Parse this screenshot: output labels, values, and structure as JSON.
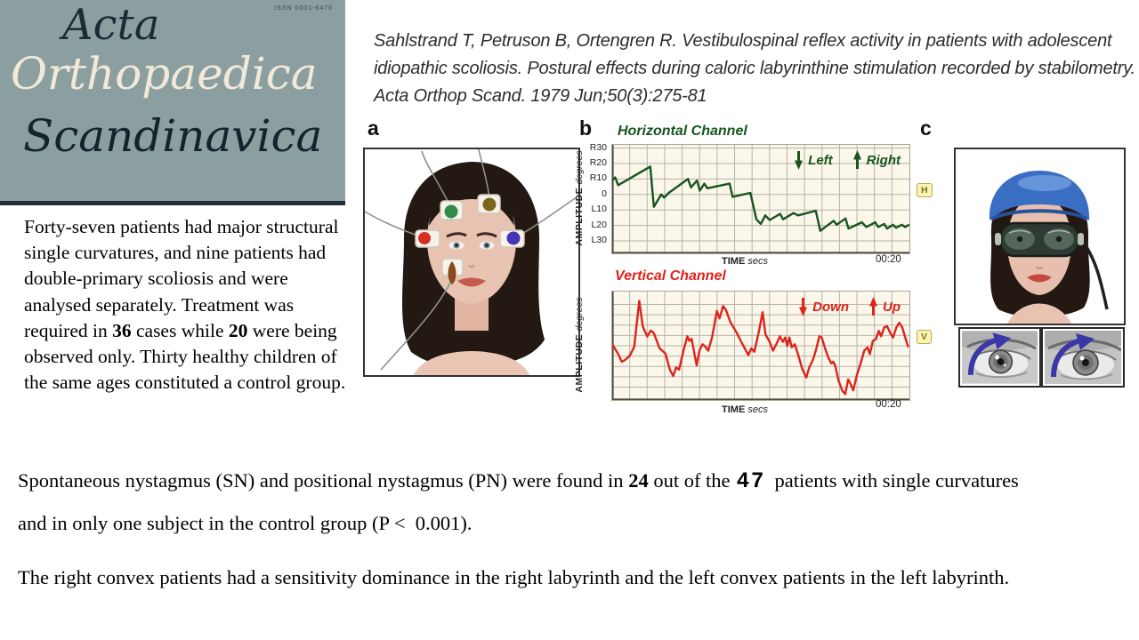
{
  "journal": {
    "issn": "ISSN 0001-6470",
    "title_lines": [
      "Acta",
      "Orthopaedica",
      "Scandinavica"
    ]
  },
  "citation": "Sahlstrand T, Petruson B, Ortengren R. Vestibulospinal reflex activity in patients with adolescent idiopathic scoliosis. Postural effects during caloric labyrinthine stimulation recorded by stabilometry. Acta Orthop Scand. 1979 Jun;50(3):275-81",
  "left_paragraph": [
    {
      "t": "Forty-seven patients had major structural single curvatures, and nine patients had double-primary scoliosis and were analysed separately. Treatment was required in "
    },
    {
      "t": "36",
      "b": true
    },
    {
      "t": " cases while "
    },
    {
      "t": "20",
      "b": true
    },
    {
      "t": " were being observed only. Thirty healthy children of the same ages constituted a control group."
    }
  ],
  "figures": {
    "a": {
      "label": "a"
    },
    "b": {
      "label": "b"
    },
    "c": {
      "label": "c"
    }
  },
  "findings": {
    "p1_line1": [
      {
        "t": "Spontaneous nystagmus (SN) and positional nystagmus (PN) were found in "
      },
      {
        "t": "24",
        "b": true
      },
      {
        "t": " out of the "
      },
      {
        "t": "47",
        "b": true,
        "big": true
      },
      {
        "t": " patients with single curvatures"
      }
    ],
    "p1_line2": [
      {
        "t": "and in only one subject in the control group (P <  0.001)."
      }
    ],
    "p2": [
      {
        "t": "The right convex patients had a sensitivity dominance in the right labyrinth and the left convex patients in the left labyrinth."
      }
    ]
  },
  "chart_data": [
    {
      "type": "line",
      "title": "Horizontal Channel",
      "color": "#17541E",
      "ylabel": "AMPLITUDE",
      "ylabel_unit": "degrees",
      "xlabel": "TIME",
      "xlabel_unit": "secs",
      "end_time": "00:20",
      "badge": "H",
      "yticks": [
        "R30",
        "R20",
        "R10",
        "0",
        "L10",
        "L20",
        "L30"
      ],
      "ytick_values": [
        30,
        20,
        10,
        0,
        -10,
        -20,
        -30
      ],
      "ylim": [
        -38,
        32
      ],
      "grid_cols": 17,
      "gridlines_y": [
        30,
        20,
        10,
        0,
        -10,
        -20,
        -30
      ],
      "legend": [
        {
          "direction": "down",
          "label": "Left"
        },
        {
          "direction": "up",
          "label": "Right"
        }
      ],
      "points": [
        [
          0,
          9
        ],
        [
          1,
          11
        ],
        [
          2,
          6
        ],
        [
          12.8,
          18
        ],
        [
          14,
          -8
        ],
        [
          16.5,
          0
        ],
        [
          17.5,
          -2
        ],
        [
          19,
          1
        ],
        [
          25.5,
          10
        ],
        [
          26.5,
          4.5
        ],
        [
          28.5,
          9
        ],
        [
          29.5,
          2.5
        ],
        [
          31,
          7
        ],
        [
          32,
          4
        ],
        [
          39.5,
          7
        ],
        [
          40.5,
          -1.5
        ],
        [
          46.5,
          1
        ],
        [
          48.5,
          -16
        ],
        [
          50,
          -19
        ],
        [
          51.5,
          -13.5
        ],
        [
          53,
          -16.5
        ],
        [
          56.5,
          -12.5
        ],
        [
          57.5,
          -16
        ],
        [
          61,
          -12
        ],
        [
          62.5,
          -13.5
        ],
        [
          68.5,
          -10.5
        ],
        [
          70,
          -23.5
        ],
        [
          74.5,
          -17
        ],
        [
          75.5,
          -19.5
        ],
        [
          78.5,
          -15.5
        ],
        [
          79.5,
          -22
        ],
        [
          84,
          -18
        ],
        [
          85.5,
          -21
        ],
        [
          88.5,
          -18
        ],
        [
          89.5,
          -21
        ],
        [
          91.5,
          -19
        ],
        [
          92.5,
          -22
        ],
        [
          94.5,
          -19.5
        ],
        [
          95.5,
          -21.5
        ],
        [
          97.5,
          -19.5
        ],
        [
          98.5,
          -21
        ],
        [
          100,
          -19.5
        ]
      ]
    },
    {
      "type": "line",
      "title": "Vertical Channel",
      "color": "#DE231B",
      "ylabel": "AMPLITUDE",
      "ylabel_unit": "degrees",
      "xlabel": "TIME",
      "xlabel_unit": "secs",
      "end_time": "00:20",
      "badge": "V",
      "yticks": [],
      "ytick_values": [],
      "ylim": [
        -21,
        21
      ],
      "grid_cols": 17,
      "gridlines_y": [
        16,
        12,
        8,
        4,
        0,
        -4,
        -8,
        -12,
        -16
      ],
      "legend": [
        {
          "direction": "down",
          "label": "Down"
        },
        {
          "direction": "up",
          "label": "Up"
        }
      ],
      "points": [
        [
          0,
          0.6
        ],
        [
          2,
          -3.2
        ],
        [
          3.2,
          -6.2
        ],
        [
          4.3,
          -5.5
        ],
        [
          5.9,
          -3.9
        ],
        [
          7.4,
          -0.4
        ],
        [
          9.1,
          17.4
        ],
        [
          10.3,
          7.4
        ],
        [
          11.8,
          3.6
        ],
        [
          13,
          5.9
        ],
        [
          14,
          4.9
        ],
        [
          15.9,
          -0.9
        ],
        [
          17.9,
          -3
        ],
        [
          19.4,
          -9.3
        ],
        [
          20.5,
          -11.7
        ],
        [
          21.5,
          -8.4
        ],
        [
          22.5,
          -9.2
        ],
        [
          24,
          -1.7
        ],
        [
          25.3,
          3.7
        ],
        [
          26,
          1.9
        ],
        [
          26.7,
          2.7
        ],
        [
          27.7,
          -3.2
        ],
        [
          28.4,
          -7.6
        ],
        [
          29.4,
          -1.7
        ],
        [
          30.4,
          0.6
        ],
        [
          31.3,
          -0.3
        ],
        [
          32.3,
          -1.9
        ],
        [
          33.6,
          3.2
        ],
        [
          35.2,
          13.5
        ],
        [
          36.1,
          10.6
        ],
        [
          37.3,
          15.4
        ],
        [
          38.3,
          13.8
        ],
        [
          39.7,
          9.3
        ],
        [
          41.7,
          5.4
        ],
        [
          43.7,
          0.9
        ],
        [
          45.8,
          -3.6
        ],
        [
          46.8,
          -1
        ],
        [
          47.8,
          -2.3
        ],
        [
          49.3,
          5.3
        ],
        [
          50.6,
          13
        ],
        [
          51.6,
          4.3
        ],
        [
          52.8,
          1.9
        ],
        [
          54.1,
          -1.9
        ],
        [
          55.2,
          0.6
        ],
        [
          56.4,
          3.7
        ],
        [
          57.4,
          1.5
        ],
        [
          58.2,
          3.2
        ],
        [
          58.9,
          -0.1
        ],
        [
          59.6,
          3.2
        ],
        [
          60.4,
          -0.6
        ],
        [
          61.4,
          0.6
        ],
        [
          62.6,
          -3.6
        ],
        [
          63.9,
          -8.8
        ],
        [
          65.3,
          -12.3
        ],
        [
          66.3,
          -8.4
        ],
        [
          67.5,
          -5.5
        ],
        [
          68.5,
          -1.9
        ],
        [
          69.7,
          3.7
        ],
        [
          70.5,
          3.2
        ],
        [
          71.5,
          -0.6
        ],
        [
          72.7,
          -4.5
        ],
        [
          73.7,
          -6.8
        ],
        [
          74.4,
          -6.2
        ],
        [
          75.1,
          -7.9
        ],
        [
          76.1,
          -13.3
        ],
        [
          77.4,
          -17.4
        ],
        [
          78.4,
          -18.7
        ],
        [
          79.4,
          -13
        ],
        [
          80.2,
          -14.8
        ],
        [
          81.1,
          -17.2
        ],
        [
          82.4,
          -11
        ],
        [
          83.6,
          -6.8
        ],
        [
          84.8,
          -1.9
        ],
        [
          85.9,
          -0.6
        ],
        [
          86.7,
          -3.2
        ],
        [
          87.7,
          1.9
        ],
        [
          88.7,
          2.5
        ],
        [
          89.7,
          5.8
        ],
        [
          90.5,
          3.7
        ],
        [
          91.5,
          7.1
        ],
        [
          92.5,
          7.6
        ],
        [
          93.5,
          5
        ],
        [
          94.5,
          3.2
        ],
        [
          95.6,
          7.1
        ],
        [
          96.6,
          8.9
        ],
        [
          97.6,
          7.1
        ],
        [
          98.6,
          3.2
        ],
        [
          99.6,
          -0.6
        ]
      ]
    }
  ]
}
